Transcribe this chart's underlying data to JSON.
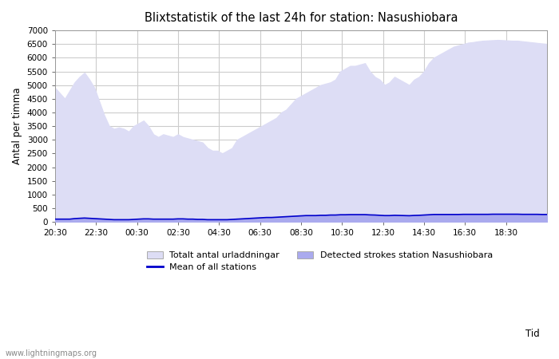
{
  "title": "Blixtstatistik of the last 24h for station: Nasushiobara",
  "ylabel": "Antal per timma",
  "xlabel": "Tid",
  "watermark": "www.lightningmaps.org",
  "ylim": [
    0,
    7000
  ],
  "yticks": [
    0,
    500,
    1000,
    1500,
    2000,
    2500,
    3000,
    3500,
    4000,
    4500,
    5000,
    5500,
    6000,
    6500,
    7000
  ],
  "xtick_labels": [
    "20:30",
    "22:30",
    "00:30",
    "02:30",
    "04:30",
    "06:30",
    "08:30",
    "10:30",
    "12:30",
    "14:30",
    "16:30",
    "18:30"
  ],
  "background_color": "#ffffff",
  "grid_color": "#cccccc",
  "fill_total_color": "#ddddf5",
  "fill_station_color": "#aaaaee",
  "line_mean_color": "#0000cc",
  "total_values": [
    4900,
    4700,
    4500,
    4800,
    5100,
    5300,
    5450,
    5200,
    4900,
    4400,
    3900,
    3500,
    3400,
    3450,
    3400,
    3300,
    3500,
    3600,
    3700,
    3500,
    3200,
    3100,
    3200,
    3150,
    3100,
    3200,
    3100,
    3050,
    3000,
    2950,
    2900,
    2700,
    2600,
    2600,
    2500,
    2600,
    2700,
    3000,
    3100,
    3200,
    3300,
    3400,
    3500,
    3600,
    3700,
    3800,
    4000,
    4100,
    4300,
    4500,
    4600,
    4700,
    4800,
    4900,
    5000,
    5050,
    5100,
    5200,
    5500,
    5600,
    5700,
    5700,
    5750,
    5800,
    5500,
    5300,
    5200,
    5000,
    5100,
    5300,
    5200,
    5100,
    5000,
    5200,
    5300,
    5500,
    5800,
    6000,
    6100,
    6200,
    6300,
    6400,
    6450,
    6500,
    6550,
    6570,
    6600,
    6620,
    6630,
    6640,
    6650,
    6640,
    6630,
    6620,
    6620,
    6600,
    6580,
    6560,
    6540,
    6520,
    6500
  ],
  "station_values": [
    100,
    100,
    100,
    100,
    120,
    130,
    140,
    130,
    120,
    110,
    100,
    90,
    80,
    80,
    80,
    80,
    90,
    100,
    110,
    110,
    100,
    100,
    100,
    100,
    100,
    110,
    110,
    100,
    100,
    90,
    90,
    80,
    80,
    80,
    80,
    80,
    90,
    100,
    110,
    120,
    130,
    140,
    150,
    160,
    160,
    170,
    180,
    190,
    200,
    210,
    220,
    230,
    230,
    230,
    240,
    240,
    250,
    250,
    260,
    260,
    265,
    265,
    265,
    265,
    255,
    250,
    240,
    230,
    230,
    240,
    235,
    230,
    225,
    235,
    240,
    250,
    260,
    270,
    270,
    270,
    270,
    270,
    270,
    275,
    275,
    275,
    275,
    275,
    275,
    280,
    280,
    280,
    280,
    280,
    280,
    275,
    275,
    275,
    275,
    270,
    270
  ],
  "mean_values": [
    100,
    100,
    100,
    100,
    120,
    130,
    140,
    130,
    120,
    110,
    100,
    90,
    80,
    80,
    80,
    80,
    90,
    100,
    110,
    110,
    100,
    100,
    100,
    100,
    100,
    110,
    110,
    100,
    100,
    90,
    90,
    80,
    80,
    80,
    80,
    80,
    90,
    100,
    110,
    120,
    130,
    140,
    150,
    160,
    160,
    170,
    180,
    190,
    200,
    210,
    220,
    230,
    230,
    230,
    240,
    240,
    250,
    250,
    260,
    260,
    265,
    265,
    265,
    265,
    255,
    250,
    240,
    230,
    230,
    240,
    235,
    230,
    225,
    235,
    240,
    250,
    260,
    270,
    270,
    270,
    270,
    270,
    270,
    275,
    275,
    275,
    275,
    275,
    275,
    280,
    280,
    280,
    280,
    280,
    280,
    275,
    275,
    275,
    275,
    270,
    270
  ],
  "legend_total": "Totalt antal urladdningar",
  "legend_station": "Detected strokes station Nasushiobara",
  "legend_mean": "Mean of all stations"
}
